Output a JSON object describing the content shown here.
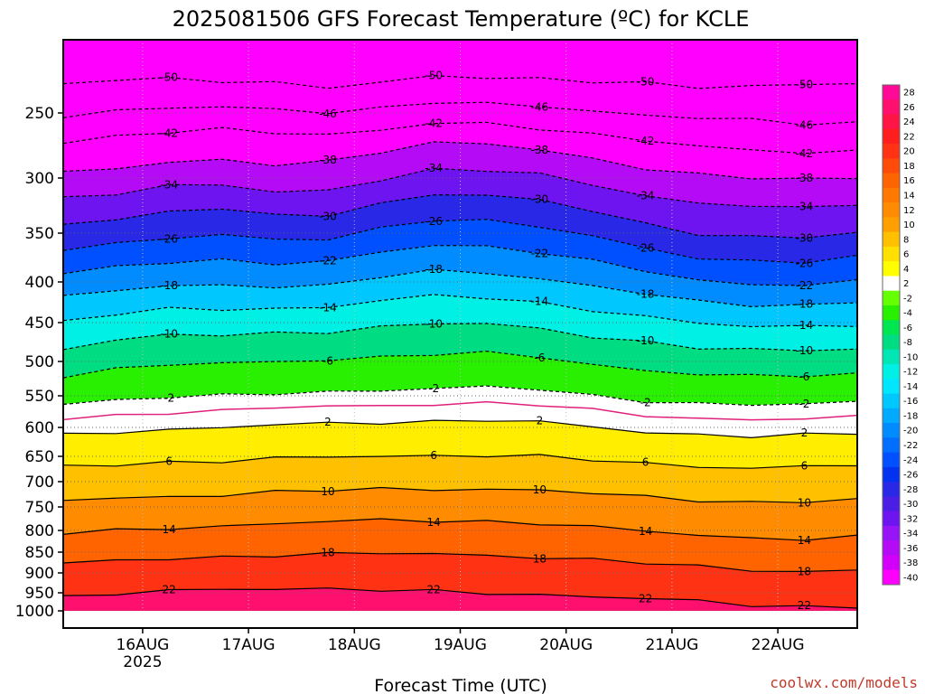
{
  "chart_data": {
    "type": "heatmap",
    "title": "2025081506 GFS Forecast Temperature (ºC) for KCLE",
    "xlabel": "Forecast Time (UTC)",
    "ylabel": "",
    "x_ticks": [
      {
        "label": "16AUG",
        "sublabel": "2025",
        "day": 16
      },
      {
        "label": "17AUG",
        "sublabel": "",
        "day": 17
      },
      {
        "label": "18AUG",
        "sublabel": "",
        "day": 18
      },
      {
        "label": "19AUG",
        "sublabel": "",
        "day": 19
      },
      {
        "label": "20AUG",
        "sublabel": "",
        "day": 20
      },
      {
        "label": "21AUG",
        "sublabel": "",
        "day": 21
      },
      {
        "label": "22AUG",
        "sublabel": "",
        "day": 22
      }
    ],
    "xlim": [
      15.25,
      22.75
    ],
    "y_ticks": [
      250,
      300,
      350,
      400,
      450,
      500,
      550,
      600,
      650,
      700,
      750,
      800,
      850,
      900,
      950,
      1000
    ],
    "ylim_hpa": [
      200,
      1000
    ],
    "surface_pressure_hpa": 985,
    "colorbar": {
      "levels": [
        28,
        26,
        24,
        22,
        20,
        18,
        16,
        14,
        12,
        10,
        8,
        6,
        4,
        2,
        -2,
        -4,
        -6,
        -8,
        -10,
        -12,
        -14,
        -16,
        -18,
        -20,
        -22,
        -24,
        -26,
        -28,
        -30,
        -32,
        -34,
        -36,
        -38,
        -40
      ],
      "colors": [
        "#ff0a96",
        "#ff0f6e",
        "#ff1446",
        "#ff1e1e",
        "#ff3214",
        "#ff4b0a",
        "#ff6400",
        "#ff7800",
        "#ff8c00",
        "#ffa000",
        "#ffc000",
        "#ffe000",
        "#ffff00",
        "#ffffff",
        "#64ff00",
        "#28f000",
        "#00e650",
        "#00dc82",
        "#00e6b4",
        "#00f0e6",
        "#00e6ff",
        "#00c8ff",
        "#00aaff",
        "#008cff",
        "#006eff",
        "#0050ff",
        "#0032f0",
        "#2828e6",
        "#4b1ee6",
        "#6e14f0",
        "#9614f5",
        "#b40af5",
        "#d200fa",
        "#ff00ff"
      ]
    },
    "series": [
      {
        "temp": -50,
        "p_hpa": [
          230,
          228,
          227,
          228,
          229,
          232,
          230,
          225,
          226,
          226,
          228,
          230,
          233,
          232,
          230,
          229
        ]
      },
      {
        "temp": -46,
        "p_hpa": [
          252,
          249,
          247,
          246,
          247,
          249,
          247,
          243,
          244,
          245,
          248,
          252,
          254,
          256,
          258,
          257
        ]
      },
      {
        "temp": -42,
        "p_hpa": [
          272,
          268,
          265,
          263,
          265,
          266,
          263,
          258,
          259,
          262,
          266,
          270,
          276,
          279,
          281,
          279
        ]
      },
      {
        "temp": -38,
        "p_hpa": [
          295,
          292,
          288,
          287,
          290,
          287,
          279,
          273,
          274,
          279,
          285,
          292,
          297,
          300,
          302,
          300
        ]
      },
      {
        "temp": -34,
        "p_hpa": [
          318,
          313,
          307,
          306,
          314,
          311,
          301,
          293,
          294,
          298,
          306,
          316,
          322,
          325,
          328,
          324
        ]
      },
      {
        "temp": -30,
        "p_hpa": [
          342,
          337,
          330,
          327,
          335,
          334,
          323,
          314,
          315,
          321,
          330,
          342,
          350,
          353,
          355,
          350
        ]
      },
      {
        "temp": -26,
        "p_hpa": [
          367,
          361,
          354,
          351,
          357,
          357,
          346,
          337,
          338,
          344,
          354,
          366,
          375,
          378,
          379,
          375
        ]
      },
      {
        "temp": -22,
        "p_hpa": [
          392,
          385,
          379,
          377,
          381,
          380,
          370,
          362,
          363,
          369,
          379,
          389,
          399,
          402,
          403,
          399
        ]
      },
      {
        "temp": -18,
        "p_hpa": [
          419,
          411,
          405,
          403,
          405,
          405,
          395,
          389,
          390,
          396,
          405,
          415,
          425,
          428,
          428,
          424
        ]
      },
      {
        "temp": -14,
        "p_hpa": [
          449,
          440,
          434,
          433,
          432,
          431,
          423,
          418,
          419,
          425,
          434,
          443,
          452,
          455,
          454,
          452
        ]
      },
      {
        "temp": -10,
        "p_hpa": [
          483,
          473,
          467,
          466,
          463,
          461,
          456,
          452,
          452,
          457,
          467,
          475,
          483,
          486,
          485,
          483
        ]
      },
      {
        "temp": -6,
        "p_hpa": [
          520,
          511,
          505,
          504,
          500,
          497,
          494,
          491,
          490,
          494,
          504,
          512,
          519,
          522,
          521,
          518
        ]
      },
      {
        "temp": -2,
        "p_hpa": [
          562,
          556,
          552,
          551,
          547,
          544,
          541,
          539,
          538,
          541,
          550,
          557,
          562,
          565,
          564,
          560
        ]
      },
      {
        "temp": 2,
        "p_hpa": [
          612,
          607,
          603,
          602,
          596,
          594,
          591,
          590,
          589,
          592,
          600,
          607,
          612,
          615,
          614,
          611
        ]
      },
      {
        "temp": 6,
        "p_hpa": [
          670,
          665,
          661,
          660,
          655,
          652,
          649,
          648,
          648,
          651,
          658,
          664,
          669,
          672,
          671,
          668
        ]
      },
      {
        "temp": 10,
        "p_hpa": [
          737,
          733,
          728,
          726,
          721,
          718,
          715,
          714,
          714,
          717,
          724,
          731,
          736,
          740,
          739,
          736
        ]
      },
      {
        "temp": 14,
        "p_hpa": [
          808,
          801,
          794,
          790,
          785,
          782,
          779,
          779,
          780,
          784,
          793,
          803,
          811,
          817,
          818,
          815
        ]
      },
      {
        "temp": 18,
        "p_hpa": [
          878,
          872,
          866,
          861,
          856,
          855,
          854,
          855,
          857,
          861,
          868,
          877,
          886,
          893,
          895,
          893
        ]
      },
      {
        "temp": 22,
        "p_hpa": [
          962,
          955,
          946,
          940,
          938,
          940,
          944,
          948,
          951,
          954,
          959,
          966,
          975,
          985,
          988,
          986
        ]
      }
    ],
    "freezing_line_p_hpa": [
      586,
      580,
      576,
      575,
      569,
      567,
      564,
      563,
      562,
      565,
      573,
      580,
      585,
      588,
      587,
      584
    ],
    "grid": true,
    "legend": "right",
    "credit": "coolwx.com/models"
  }
}
